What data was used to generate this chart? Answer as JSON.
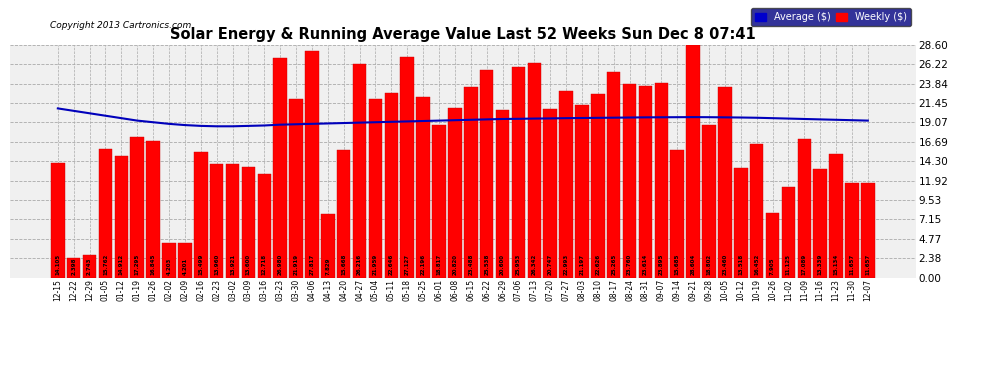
{
  "title": "Solar Energy & Running Average Value Last 52 Weeks Sun Dec 8 07:41",
  "copyright": "Copyright 2013 Cartronics.com",
  "bar_color": "#ff0000",
  "avg_line_color": "#0000bb",
  "background_color": "#ffffff",
  "plot_bg_color": "#f0f0f0",
  "grid_color": "#aaaaaa",
  "yticks": [
    0.0,
    2.38,
    4.77,
    7.15,
    9.53,
    11.92,
    14.3,
    16.69,
    19.07,
    21.45,
    23.84,
    26.22,
    28.6
  ],
  "ylim": [
    0.0,
    28.6
  ],
  "legend_labels": [
    "Average ($)",
    "Weekly ($)"
  ],
  "legend_colors": [
    "#0000cc",
    "#ff0000"
  ],
  "legend_bg": "#000080",
  "categories": [
    "12-15",
    "12-22",
    "12-29",
    "01-05",
    "01-12",
    "01-19",
    "01-26",
    "02-02",
    "02-09",
    "02-16",
    "02-23",
    "03-02",
    "03-09",
    "03-16",
    "03-23",
    "03-30",
    "04-06",
    "04-13",
    "04-20",
    "04-27",
    "05-04",
    "05-11",
    "05-18",
    "05-25",
    "06-01",
    "06-08",
    "06-15",
    "06-22",
    "06-29",
    "07-06",
    "07-13",
    "07-20",
    "07-27",
    "08-03",
    "08-10",
    "08-17",
    "08-24",
    "08-31",
    "09-07",
    "09-14",
    "09-21",
    "09-28",
    "10-05",
    "10-12",
    "10-19",
    "10-26",
    "11-02",
    "11-09",
    "11-16",
    "11-23",
    "11-30",
    "12-07"
  ],
  "bar_values": [
    14.105,
    2.398,
    2.743,
    15.762,
    14.912,
    17.295,
    16.845,
    4.203,
    4.201,
    15.499,
    13.96,
    13.921,
    13.6,
    12.718,
    26.98,
    21.919,
    27.817,
    7.829,
    15.668,
    26.216,
    21.959,
    22.646,
    27.127,
    22.196,
    18.817,
    20.82,
    23.488,
    25.538,
    20.6,
    25.953,
    26.342,
    20.747,
    22.993,
    21.197,
    22.626,
    25.265,
    23.76,
    23.614,
    23.895,
    15.685,
    28.604,
    18.802,
    23.46,
    13.518,
    16.452,
    7.905,
    11.125,
    17.089,
    13.339,
    15.134,
    11.657,
    11.657
  ],
  "avg_values": [
    20.8,
    20.5,
    20.2,
    19.9,
    19.6,
    19.3,
    19.1,
    18.9,
    18.75,
    18.65,
    18.6,
    18.6,
    18.65,
    18.7,
    18.8,
    18.85,
    18.9,
    18.95,
    19.0,
    19.05,
    19.1,
    19.15,
    19.2,
    19.25,
    19.3,
    19.35,
    19.4,
    19.45,
    19.5,
    19.52,
    19.55,
    19.57,
    19.6,
    19.62,
    19.64,
    19.66,
    19.68,
    19.7,
    19.71,
    19.72,
    19.73,
    19.72,
    19.7,
    19.68,
    19.65,
    19.6,
    19.55,
    19.5,
    19.45,
    19.4,
    19.35,
    19.3
  ]
}
